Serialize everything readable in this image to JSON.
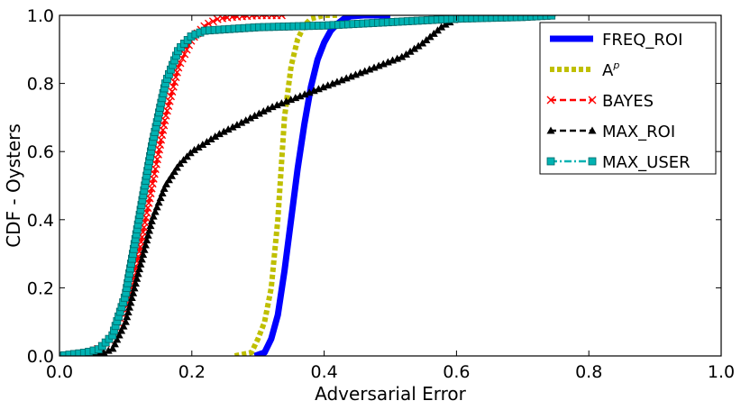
{
  "chart_data": {
    "type": "line",
    "title": "",
    "xlabel": "Adversarial Error",
    "ylabel": "CDF - Oysters",
    "xlim": [
      0.0,
      1.0
    ],
    "ylim": [
      0.0,
      1.0
    ],
    "xticks": [
      "0.0",
      "0.2",
      "0.4",
      "0.6",
      "0.8",
      "1.0"
    ],
    "yticks": [
      "0.0",
      "0.2",
      "0.4",
      "0.6",
      "0.8",
      "1.0"
    ],
    "grid": false,
    "legend": {
      "placement": "top-right",
      "entries": [
        {
          "label": "FREQ_ROI"
        },
        {
          "label": "A",
          "superscript": "p"
        },
        {
          "label": "BAYES"
        },
        {
          "label": "MAX_ROI"
        },
        {
          "label": "MAX_USER"
        }
      ]
    },
    "series": [
      {
        "name": "FREQ_ROI",
        "color": "#0000ff",
        "style": "solid",
        "marker": "none",
        "x": [
          0.295,
          0.31,
          0.32,
          0.33,
          0.34,
          0.35,
          0.36,
          0.37,
          0.38,
          0.39,
          0.4,
          0.41,
          0.42,
          0.43,
          0.44,
          0.46,
          0.5
        ],
        "y": [
          0.0,
          0.01,
          0.05,
          0.12,
          0.25,
          0.4,
          0.55,
          0.68,
          0.79,
          0.87,
          0.92,
          0.955,
          0.975,
          0.99,
          0.997,
          1.0,
          1.0
        ]
      },
      {
        "name": "A^p",
        "color": "#bfbf00",
        "style": "dotted",
        "marker": "none",
        "x": [
          0.265,
          0.29,
          0.3,
          0.31,
          0.32,
          0.33,
          0.335,
          0.34,
          0.35,
          0.36,
          0.37,
          0.38,
          0.39,
          0.4,
          0.42
        ],
        "y": [
          0.0,
          0.01,
          0.05,
          0.1,
          0.2,
          0.4,
          0.55,
          0.7,
          0.85,
          0.93,
          0.97,
          0.99,
          0.995,
          1.0,
          1.0
        ]
      },
      {
        "name": "BAYES",
        "color": "#ff0000",
        "style": "dashed",
        "marker": "x",
        "x": [
          0.0,
          0.05,
          0.08,
          0.1,
          0.12,
          0.14,
          0.16,
          0.18,
          0.2,
          0.22,
          0.24,
          0.26,
          0.3,
          0.34
        ],
        "y": [
          0.0,
          0.01,
          0.05,
          0.15,
          0.3,
          0.5,
          0.7,
          0.85,
          0.93,
          0.97,
          0.99,
          0.995,
          1.0,
          1.0
        ]
      },
      {
        "name": "MAX_ROI",
        "color": "#000000",
        "style": "dashed",
        "marker": "triangle",
        "x": [
          0.0,
          0.06,
          0.08,
          0.1,
          0.12,
          0.14,
          0.16,
          0.18,
          0.2,
          0.24,
          0.28,
          0.32,
          0.36,
          0.4,
          0.44,
          0.48,
          0.52,
          0.55,
          0.58,
          0.6,
          0.62,
          0.65
        ],
        "y": [
          0.0,
          0.005,
          0.02,
          0.1,
          0.25,
          0.4,
          0.5,
          0.56,
          0.6,
          0.65,
          0.69,
          0.73,
          0.76,
          0.79,
          0.82,
          0.85,
          0.88,
          0.92,
          0.97,
          0.99,
          1.0,
          1.0
        ]
      },
      {
        "name": "MAX_USER",
        "color": "#00b2b2",
        "style": "dashdot",
        "marker": "square",
        "x": [
          0.0,
          0.04,
          0.06,
          0.08,
          0.1,
          0.12,
          0.14,
          0.16,
          0.18,
          0.2,
          0.22,
          0.26,
          0.3,
          0.4,
          0.5,
          0.6,
          0.7,
          0.75
        ],
        "y": [
          0.0,
          0.01,
          0.02,
          0.06,
          0.18,
          0.4,
          0.62,
          0.8,
          0.9,
          0.94,
          0.955,
          0.96,
          0.965,
          0.97,
          0.98,
          0.99,
          0.995,
          1.0
        ]
      }
    ]
  }
}
